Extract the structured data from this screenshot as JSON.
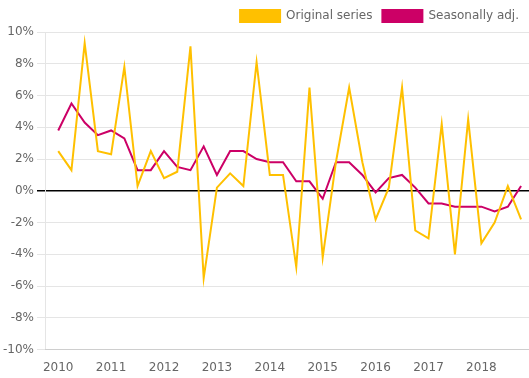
{
  "chart_data": {
    "type": "line",
    "x": [
      2010.0,
      2010.25,
      2010.5,
      2010.75,
      2011.0,
      2011.25,
      2011.5,
      2011.75,
      2012.0,
      2012.25,
      2012.5,
      2012.75,
      2013.0,
      2013.25,
      2013.5,
      2013.75,
      2014.0,
      2014.25,
      2014.5,
      2014.75,
      2015.0,
      2015.25,
      2015.5,
      2015.75,
      2016.0,
      2016.25,
      2016.5,
      2016.75,
      2017.0,
      2017.25,
      2017.5,
      2017.75,
      2018.0,
      2018.25,
      2018.5,
      2018.75
    ],
    "series": [
      {
        "name": "Original series",
        "color": "#FFC000",
        "values": [
          2.5,
          1.3,
          9.3,
          2.5,
          2.3,
          7.8,
          0.3,
          2.5,
          0.8,
          1.2,
          9.1,
          -5.5,
          0.2,
          1.1,
          0.3,
          8.1,
          1.0,
          1.0,
          -4.8,
          6.5,
          -4.2,
          1.8,
          6.5,
          1.8,
          -1.8,
          0.2,
          6.5,
          -2.5,
          -3.0,
          4.2,
          -4.0,
          4.5,
          -3.3,
          -2.0,
          0.3,
          -1.8
        ]
      },
      {
        "name": "Seasonally adj.",
        "color": "#CC0066",
        "values": [
          3.8,
          5.5,
          4.3,
          3.5,
          3.8,
          3.3,
          1.3,
          1.3,
          2.5,
          1.5,
          1.3,
          2.8,
          1.0,
          2.5,
          2.5,
          2.0,
          1.8,
          1.8,
          0.6,
          0.6,
          -0.5,
          1.8,
          1.8,
          1.0,
          -0.1,
          0.8,
          1.0,
          0.2,
          -0.8,
          -0.8,
          -1.0,
          -1.0,
          -1.0,
          -1.3,
          -1.0,
          0.3
        ]
      }
    ],
    "xlim": [
      2009.75,
      2018.9
    ],
    "xticks": [
      2010,
      2011,
      2012,
      2013,
      2014,
      2015,
      2016,
      2017,
      2018
    ],
    "ylim": [
      -10,
      10
    ],
    "yticks": [
      {
        "value": -10,
        "label": "-10%"
      },
      {
        "value": -8,
        "label": "-8%"
      },
      {
        "value": -6,
        "label": "-6%"
      },
      {
        "value": -4,
        "label": "-4%"
      },
      {
        "value": -2,
        "label": "-2%"
      },
      {
        "value": 0,
        "label": "0%"
      },
      {
        "value": 2,
        "label": "2%"
      },
      {
        "value": 4,
        "label": "4%"
      },
      {
        "value": 6,
        "label": "6%"
      },
      {
        "value": 8,
        "label": "8%"
      },
      {
        "value": 10,
        "label": "10%"
      }
    ],
    "grid": "y",
    "legend": "upper right"
  }
}
